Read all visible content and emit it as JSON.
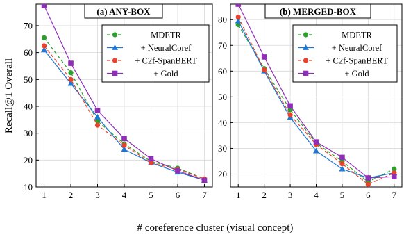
{
  "xlabel": "# coreference cluster (visual concept)",
  "ylabel": "Recall@1 Overall",
  "legend_entries": [
    "MDETR",
    "+ NeuralCoref",
    "+ C2f-SpanBERT",
    "+ Gold"
  ],
  "colors": {
    "MDETR": "#2ca02c",
    "+ NeuralCoref": "#1f77d4",
    "+ C2f-SpanBERT": "#e8412c",
    "+ Gold": "#8e2fb5"
  },
  "chart_data": [
    {
      "type": "line",
      "title": "(a) ANY-BOX",
      "xlabel": "",
      "ylabel": "Recall@1 Overall",
      "x": [
        1,
        2,
        3,
        4,
        5,
        6,
        7
      ],
      "xlim": [
        0.7,
        7.3
      ],
      "ylim": [
        10,
        78
      ],
      "yticks": [
        10,
        20,
        30,
        40,
        50,
        60,
        70
      ],
      "grid": true,
      "legend": "top-right",
      "series": [
        {
          "name": "MDETR",
          "values": [
            65.5,
            52.5,
            34.5,
            26,
            19.5,
            17,
            13
          ]
        },
        {
          "name": "+ NeuralCoref",
          "values": [
            61,
            48.5,
            36,
            24,
            19,
            15.5,
            12.5
          ]
        },
        {
          "name": "+ C2f-SpanBERT",
          "values": [
            62.5,
            50,
            33,
            25.5,
            19,
            16.5,
            13
          ]
        },
        {
          "name": "+ Gold",
          "values": [
            77.5,
            56,
            38.5,
            28,
            20.5,
            16,
            12.5
          ]
        }
      ]
    },
    {
      "type": "line",
      "title": "(b) MERGED-BOX",
      "xlabel": "",
      "ylabel": "",
      "x": [
        1,
        2,
        3,
        4,
        5,
        6,
        7
      ],
      "xlim": [
        0.7,
        7.3
      ],
      "ylim": [
        15,
        86
      ],
      "yticks": [
        20,
        30,
        40,
        50,
        60,
        70,
        80
      ],
      "grid": true,
      "legend": "top-right",
      "series": [
        {
          "name": "MDETR",
          "values": [
            78,
            61,
            45,
            32,
            25,
            17,
            22
          ]
        },
        {
          "name": "+ NeuralCoref",
          "values": [
            79.5,
            60,
            42,
            29,
            22,
            18.5,
            20.5
          ]
        },
        {
          "name": "+ C2f-SpanBERT",
          "values": [
            81,
            60.5,
            43,
            31.5,
            24,
            16,
            20.5
          ]
        },
        {
          "name": "+ Gold",
          "values": [
            86,
            65.5,
            46.5,
            32.5,
            26.5,
            18.5,
            19
          ]
        }
      ]
    }
  ]
}
